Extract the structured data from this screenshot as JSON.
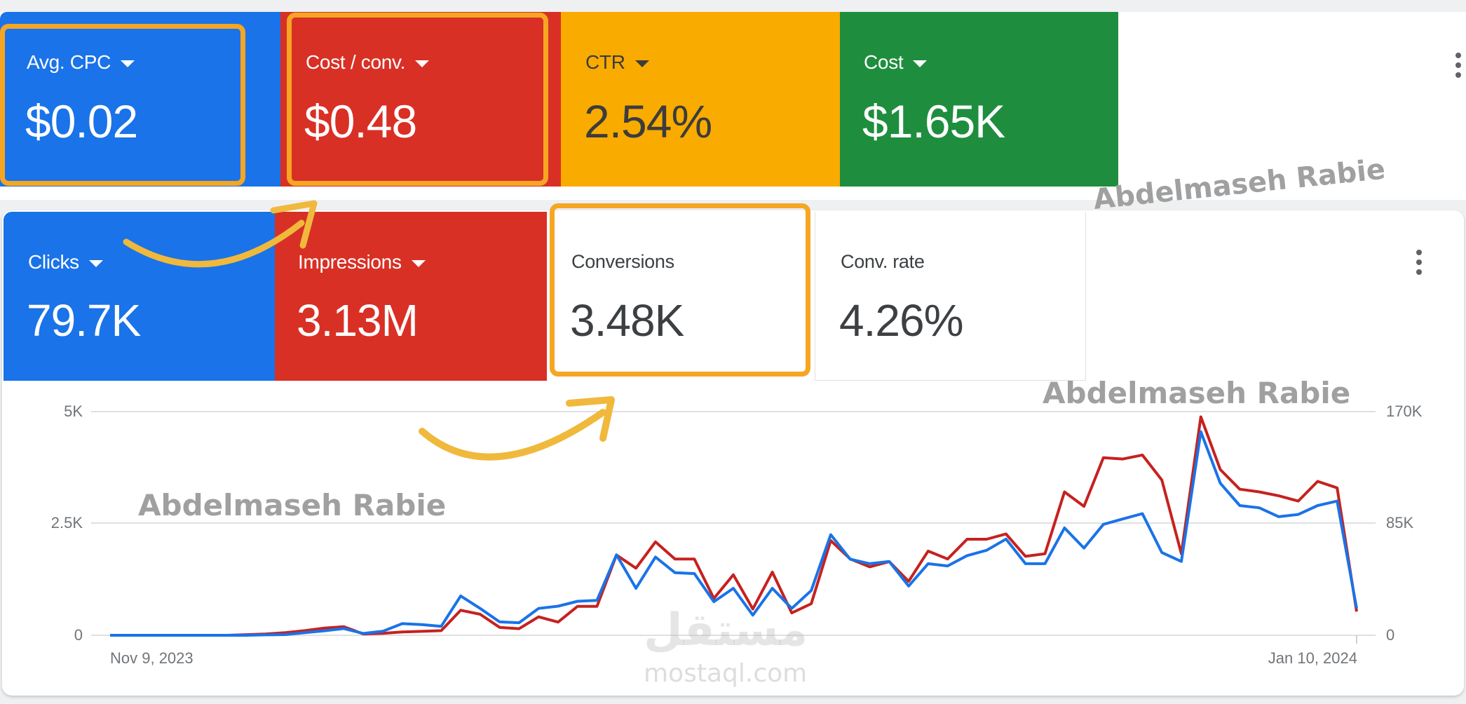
{
  "colors": {
    "blue": "#1a73e8",
    "red": "#d93025",
    "yellow": "#f9ab00",
    "green": "#1e8e3e",
    "highlight": "#f5a623",
    "arrow": "#f0b93c",
    "clicks_line": "#1a73e8",
    "second_line": "#c5221f"
  },
  "top_row": {
    "cards": [
      {
        "label": "Avg. CPC",
        "value": "$0.02",
        "color": "#1a73e8",
        "dropdown": true
      },
      {
        "label": "Cost / conv.",
        "value": "$0.48",
        "color": "#d93025",
        "dropdown": true
      },
      {
        "label": "CTR",
        "value": "2.54%",
        "color": "#f9ab00",
        "dropdown": true
      },
      {
        "label": "Cost",
        "value": "$1.65K",
        "color": "#1e8e3e",
        "dropdown": true
      }
    ],
    "more_icon": "more-vert-icon"
  },
  "bottom_row": {
    "cards": [
      {
        "label": "Clicks",
        "value": "79.7K",
        "color": "#1a73e8",
        "dropdown": true
      },
      {
        "label": "Impressions",
        "value": "3.13M",
        "color": "#d93025",
        "dropdown": true
      },
      {
        "label": "Conversions",
        "value": "3.48K",
        "color": "#ffffff",
        "dropdown": false
      },
      {
        "label": "Conv. rate",
        "value": "4.26%",
        "color": "#ffffff",
        "dropdown": false
      }
    ],
    "more_icon": "more-vert-icon"
  },
  "watermarks": {
    "name": "Abdelmaseh Rabie",
    "site_text": "mostaql.com",
    "site_logo": "مستقل"
  },
  "chart_data": {
    "type": "line",
    "title": "",
    "xlabel": "",
    "ylabel": "",
    "x_start_label": "Nov 9, 2023",
    "x_end_label": "Jan 10, 2024",
    "left_axis": {
      "ticks": [
        "0",
        "2.5K",
        "5K"
      ],
      "range": [
        0,
        5000
      ]
    },
    "right_axis": {
      "ticks": [
        "0",
        "85K",
        "170K"
      ],
      "range": [
        0,
        170000
      ]
    },
    "grid": true,
    "legend": "none",
    "series": [
      {
        "name": "Clicks",
        "axis": "left",
        "color": "#1a73e8",
        "values": [
          0,
          0,
          0,
          0,
          0,
          0,
          0,
          0,
          10,
          15,
          60,
          100,
          150,
          40,
          90,
          260,
          240,
          200,
          880,
          600,
          300,
          280,
          600,
          650,
          760,
          780,
          1800,
          1050,
          1750,
          1400,
          1380,
          750,
          1050,
          450,
          1050,
          600,
          1000,
          2250,
          1700,
          1600,
          1650,
          1100,
          1600,
          1550,
          1780,
          1900,
          2150,
          1600,
          1600,
          2400,
          1950,
          2480,
          2600,
          2720,
          1850,
          1650,
          4550,
          3400,
          2900,
          2850,
          2650,
          2700,
          2900,
          3000,
          600
        ]
      },
      {
        "name": "Impressions",
        "axis": "right",
        "color": "#c5221f",
        "values": [
          0,
          0,
          0,
          0,
          0,
          0,
          0,
          500,
          1000,
          2000,
          3500,
          5500,
          6500,
          1000,
          1500,
          2500,
          3000,
          3500,
          19000,
          16000,
          6000,
          5000,
          14000,
          10000,
          22000,
          22000,
          61000,
          51000,
          71000,
          58000,
          58000,
          28000,
          46000,
          20000,
          48000,
          17000,
          24000,
          72000,
          58000,
          52000,
          56000,
          41000,
          64000,
          58000,
          73000,
          73000,
          77000,
          60000,
          62000,
          109000,
          98000,
          135000,
          134000,
          137000,
          118000,
          62000,
          166000,
          126000,
          111000,
          109000,
          106000,
          102000,
          117000,
          112000,
          18000
        ]
      }
    ]
  }
}
